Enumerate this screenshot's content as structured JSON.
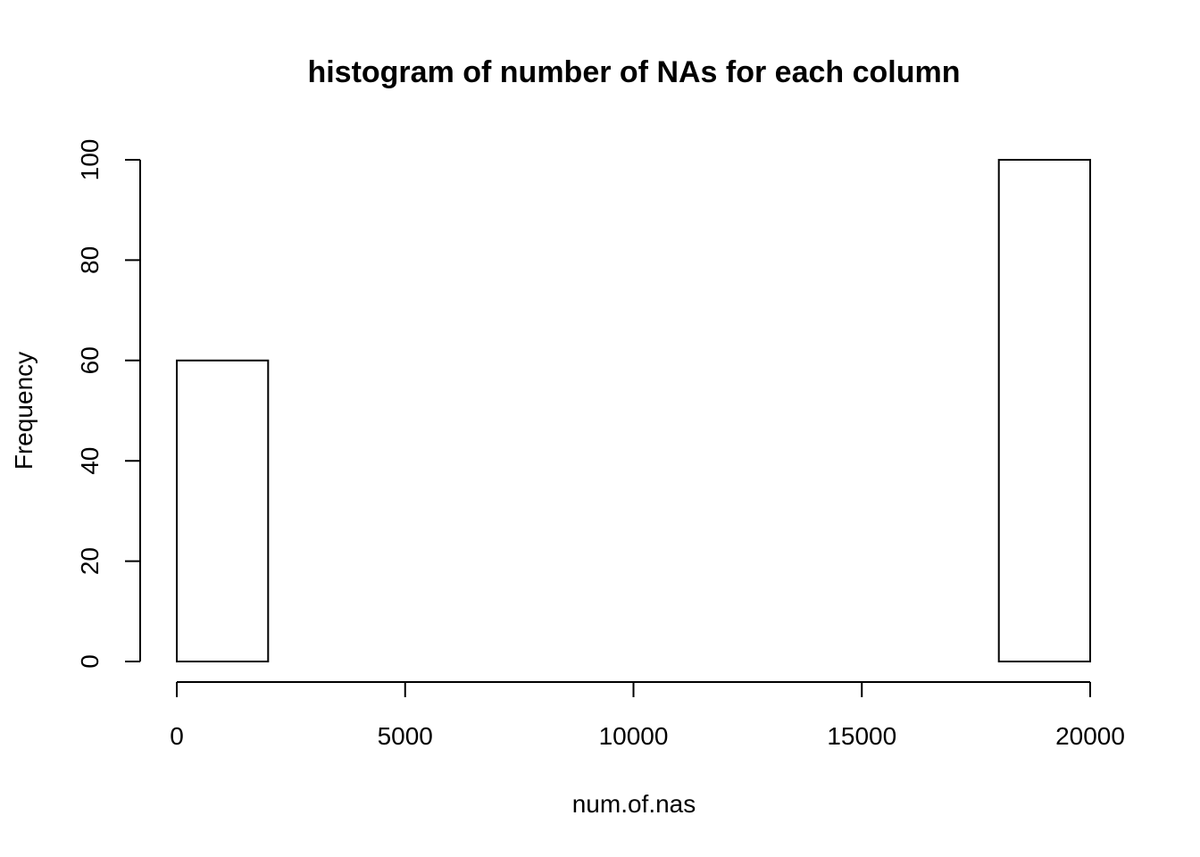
{
  "chart_data": {
    "type": "bar",
    "title": "histogram of number of NAs for each column",
    "xlabel": "num.of.nas",
    "ylabel": "Frequency",
    "bins": [
      {
        "x0": 0,
        "x1": 2000,
        "count": 60
      },
      {
        "x0": 2000,
        "x1": 4000,
        "count": 0
      },
      {
        "x0": 4000,
        "x1": 6000,
        "count": 0
      },
      {
        "x0": 6000,
        "x1": 8000,
        "count": 0
      },
      {
        "x0": 8000,
        "x1": 10000,
        "count": 0
      },
      {
        "x0": 10000,
        "x1": 12000,
        "count": 0
      },
      {
        "x0": 12000,
        "x1": 14000,
        "count": 0
      },
      {
        "x0": 14000,
        "x1": 16000,
        "count": 0
      },
      {
        "x0": 16000,
        "x1": 18000,
        "count": 0
      },
      {
        "x0": 18000,
        "x1": 20000,
        "count": 100
      }
    ],
    "xlim": [
      0,
      20000
    ],
    "ylim": [
      0,
      100
    ],
    "xticks": [
      0,
      5000,
      10000,
      15000,
      20000
    ],
    "yticks": [
      0,
      20,
      40,
      60,
      80,
      100
    ],
    "grid": false,
    "bar_fill": "#ffffff",
    "bar_stroke": "#000000"
  }
}
